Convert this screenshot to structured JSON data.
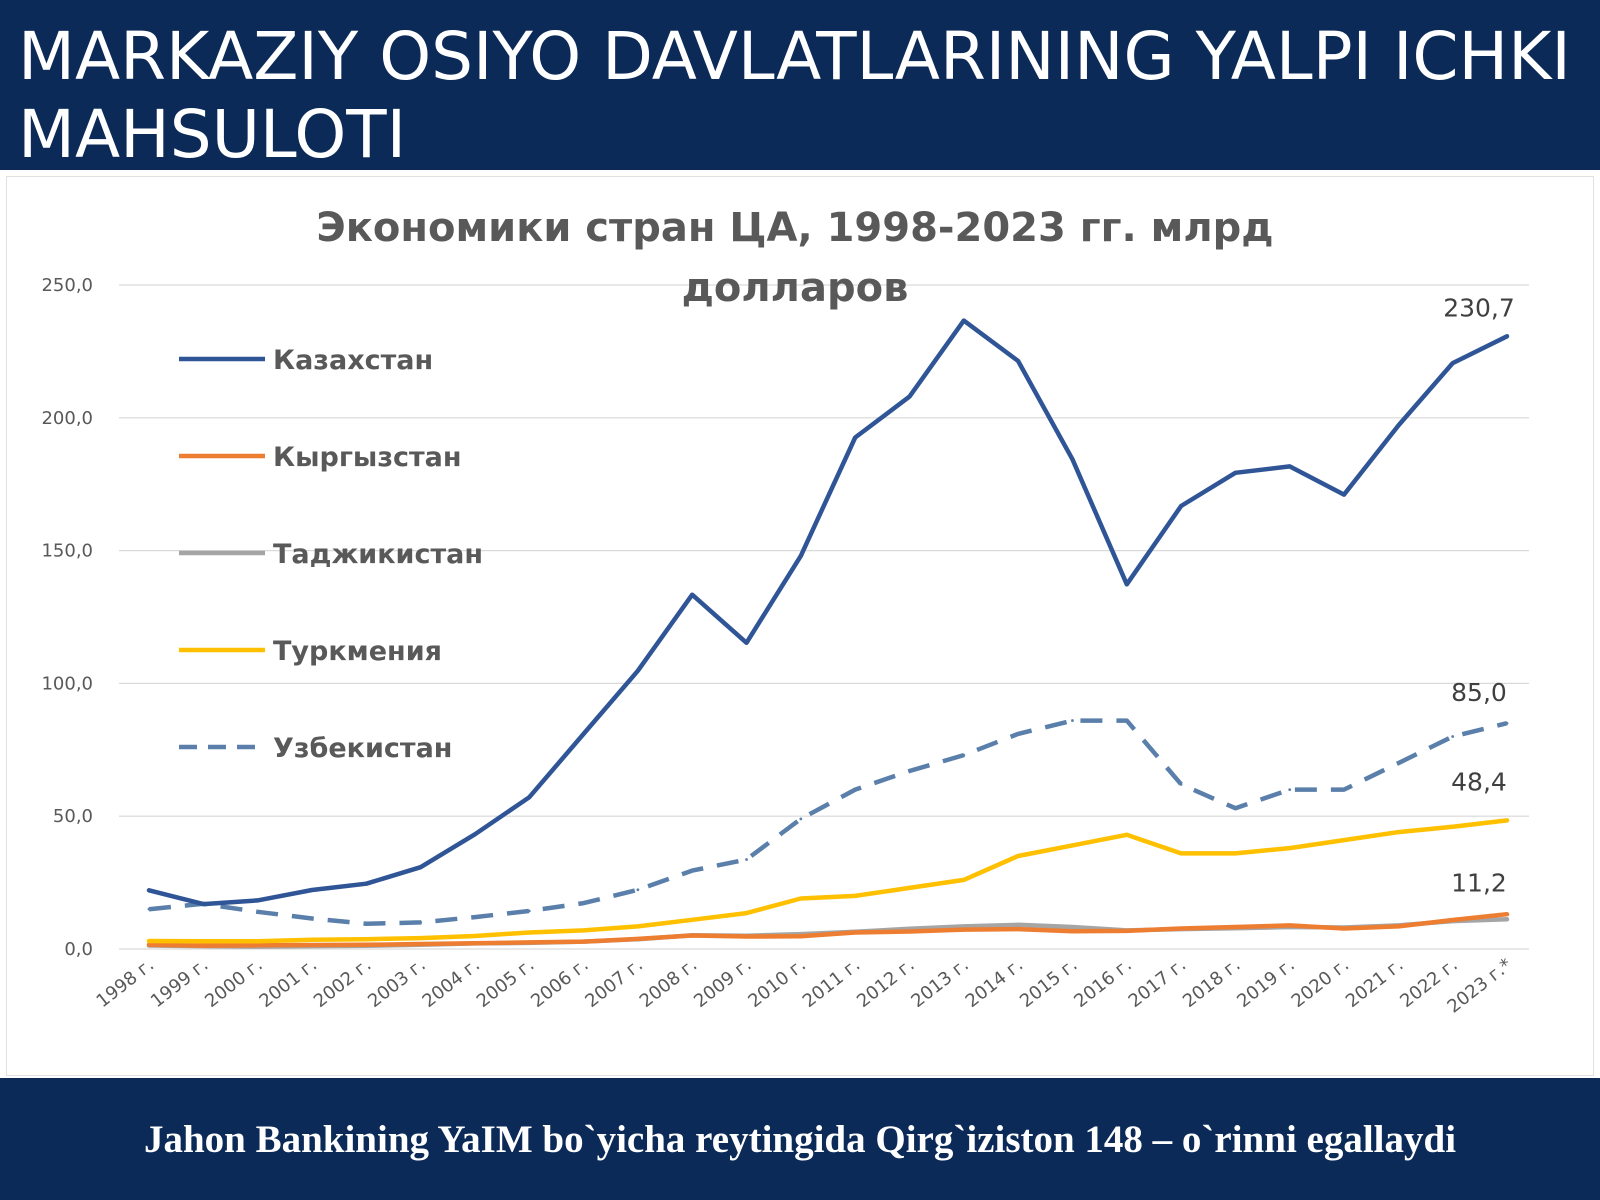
{
  "slide": {
    "title": "MARKAZIY OSIYO DAVLATLARINING YALPI ICHKI MAHSULOTI",
    "footer": "Jahon Bankining YaIM bo`yicha reytingida Qirg`iziston 148 – o`rinni egallaydi"
  },
  "chart_data": {
    "type": "line",
    "title": [
      "Экономики стран ЦА, 1998-2023 гг. млрд",
      "долларов"
    ],
    "xlabel": "",
    "ylabel": "",
    "ylim": [
      0,
      250
    ],
    "yticks": [
      "0,0",
      "50,0",
      "100,0",
      "150,0",
      "200,0",
      "250,0"
    ],
    "grid": true,
    "legend_position": "top-left",
    "categories": [
      "1998 г.",
      "1999 г.",
      "2000 г.",
      "2001 г.",
      "2002 г.",
      "2003 г.",
      "2004 г.",
      "2005 г.",
      "2006 г.",
      "2007 г.",
      "2008 г.",
      "2009 г.",
      "2010 г.",
      "2011 г.",
      "2012 г.",
      "2013 г.",
      "2014 г.",
      "2015 г.",
      "2016 г.",
      "2017 г.",
      "2018 г.",
      "2019 г.",
      "2020 г.",
      "2021 г.",
      "2022 г.",
      "2023 г.*"
    ],
    "series": [
      {
        "name": "Казахстан",
        "color": "#2f5597",
        "dash": "solid",
        "values": [
          22.1,
          16.9,
          18.3,
          22.2,
          24.6,
          30.8,
          43.2,
          57.1,
          81.0,
          104.8,
          133.4,
          115.3,
          148.0,
          192.6,
          208.0,
          236.6,
          221.4,
          184.4,
          137.3,
          166.8,
          179.3,
          181.7,
          171.1,
          197.1,
          220.6,
          230.7
        ]
      },
      {
        "name": "Кыргызстан",
        "color": "#ed7d31",
        "dash": "solid",
        "values": [
          1.6,
          1.2,
          1.4,
          1.5,
          1.6,
          1.9,
          2.2,
          2.5,
          2.8,
          3.8,
          5.1,
          4.7,
          4.8,
          6.2,
          6.6,
          7.3,
          7.5,
          6.7,
          6.8,
          7.7,
          8.3,
          8.9,
          7.7,
          8.5,
          10.9,
          13.1
        ]
      },
      {
        "name": "Таджикистан",
        "color": "#a5a5a5",
        "dash": "solid",
        "values": [
          1.3,
          1.1,
          0.9,
          1.1,
          1.2,
          1.6,
          2.1,
          2.3,
          2.8,
          3.7,
          5.2,
          5.0,
          5.6,
          6.5,
          7.6,
          8.5,
          9.1,
          8.3,
          7.0,
          7.5,
          7.8,
          8.3,
          8.1,
          8.9,
          10.5,
          11.2
        ]
      },
      {
        "name": "Туркмения",
        "color": "#ffc000",
        "dash": "solid",
        "values": [
          3.0,
          2.9,
          2.9,
          3.5,
          3.7,
          4.1,
          4.9,
          6.2,
          7.0,
          8.5,
          11.0,
          13.5,
          19.0,
          20.0,
          23.0,
          26.0,
          35.0,
          39.0,
          43.0,
          36.0,
          36.0,
          38.0,
          41.0,
          44.0,
          46.0,
          48.4
        ]
      },
      {
        "name": "Узбекистан",
        "color": "#5b7fab",
        "dash": "dashed",
        "values": [
          15.0,
          17.0,
          14.0,
          11.5,
          9.5,
          10.0,
          12.0,
          14.3,
          17.3,
          22.3,
          29.5,
          33.7,
          49.0,
          60.0,
          67.0,
          73.0,
          81.0,
          86.0,
          86.0,
          62.0,
          53.0,
          60.0,
          60.0,
          70.0,
          80.0,
          85.0
        ]
      }
    ],
    "annotations": [
      {
        "series": "Казахстан",
        "text": "230,7"
      },
      {
        "series": "Узбекистан",
        "text": "85,0"
      },
      {
        "series": "Туркмения",
        "text": "48,4"
      },
      {
        "series": "Таджикистан",
        "text": "11,2"
      }
    ]
  }
}
